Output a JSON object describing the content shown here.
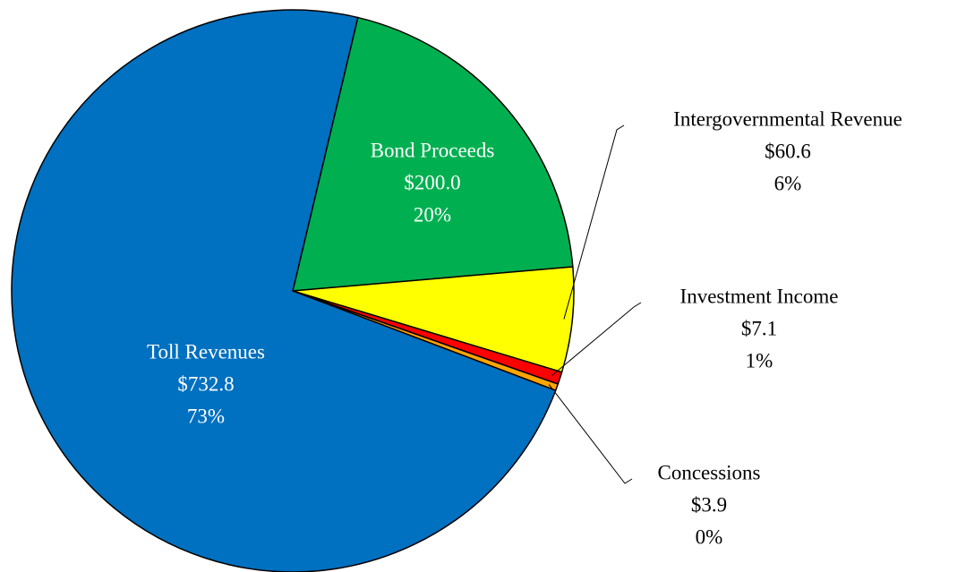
{
  "chart_data": {
    "type": "pie",
    "categories": [
      "Bond Proceeds",
      "Intergovernmental Revenue",
      "Investment Income",
      "Concessions",
      "Toll Revenues"
    ],
    "values": [
      200.0,
      60.6,
      7.1,
      3.9,
      732.8
    ],
    "value_labels": [
      "$200.0",
      "$60.6",
      "$7.1",
      "$3.9",
      "$732.8"
    ],
    "percent_labels": [
      "20%",
      "6%",
      "1%",
      "0%",
      "73%"
    ],
    "colors": [
      "#00b050",
      "#ffff00",
      "#ff0000",
      "#ffa500",
      "#0070c0"
    ]
  }
}
